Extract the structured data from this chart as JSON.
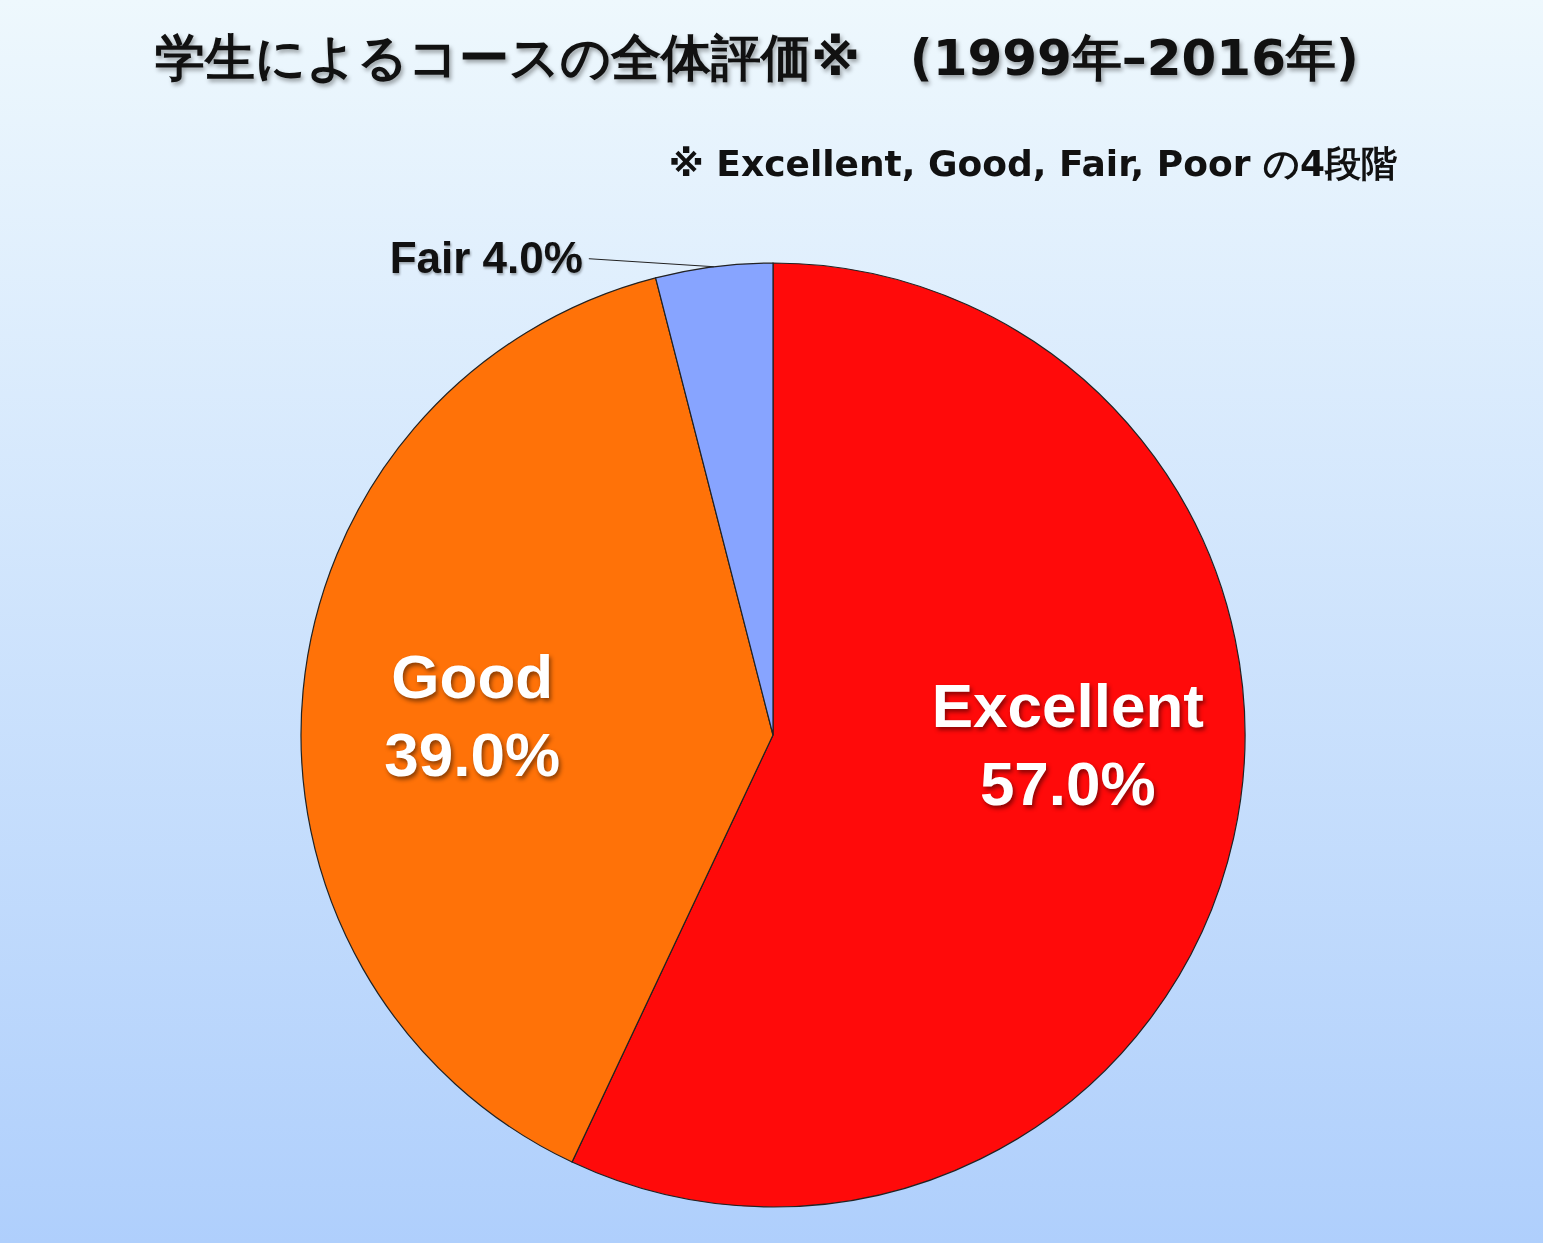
{
  "chart_data": {
    "type": "pie",
    "title": "学生によるコースの全体評価※　(1999年–2016年)",
    "subtitle": "※ Excellent, Good, Fair, Poor の4段階",
    "categories": [
      "Excellent",
      "Good",
      "Fair"
    ],
    "values": [
      57.0,
      39.0,
      4.0
    ],
    "value_labels": [
      "57.0%",
      "39.0%",
      "4.0%"
    ],
    "colors": [
      "#ff0a0a",
      "#ff7208",
      "#87a4ff"
    ]
  }
}
